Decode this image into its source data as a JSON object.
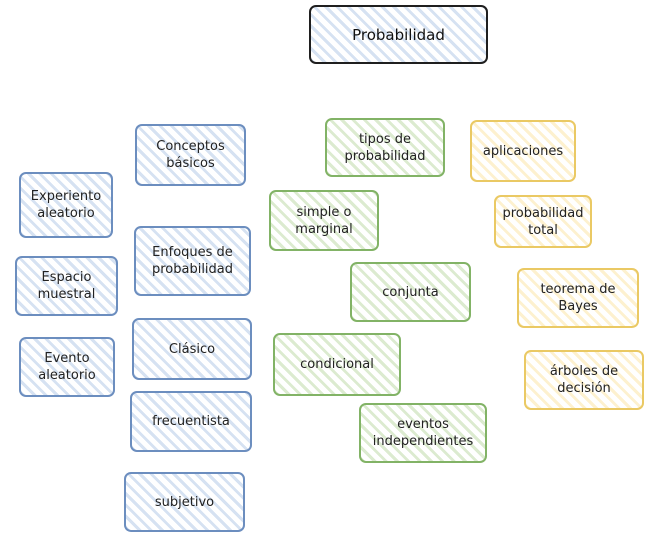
{
  "title": "Probabilidad",
  "colors": {
    "blue": "#6c8ebf",
    "green": "#82b366",
    "yellow": "#eac964"
  },
  "blue_column_left": [
    {
      "label": "Experiento\naleatorio"
    },
    {
      "label": "Espacio\nmuestral"
    },
    {
      "label": "Evento\naleatorio"
    }
  ],
  "blue_column_right": [
    {
      "label": "Conceptos\nbásicos"
    },
    {
      "label": "Enfoques de\nprobabilidad"
    },
    {
      "label": "Clásico"
    },
    {
      "label": "frecuentista"
    },
    {
      "label": "subjetivo"
    }
  ],
  "green_column": [
    {
      "label": "tipos de\nprobabilidad"
    },
    {
      "label": "simple o\nmarginal"
    },
    {
      "label": "conjunta"
    },
    {
      "label": "condicional"
    },
    {
      "label": "eventos\nindependientes"
    }
  ],
  "yellow_column": [
    {
      "label": "aplicaciones"
    },
    {
      "label": "probabilidad\ntotal"
    },
    {
      "label": "teorema de Bayes"
    },
    {
      "label": "árboles de\ndecisión"
    }
  ]
}
